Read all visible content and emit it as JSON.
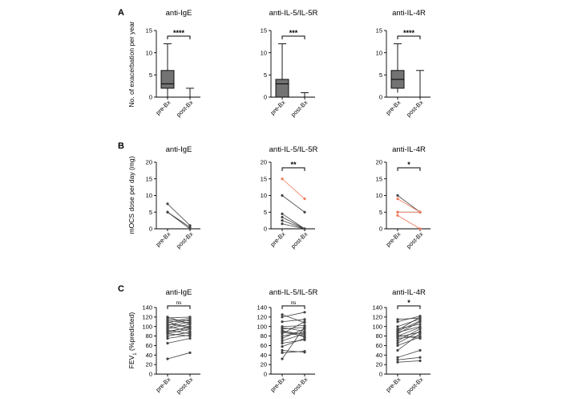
{
  "panels": [
    {
      "letter": "A",
      "ylabel": "No. of exacerbation per year",
      "charts": [
        {
          "type": "box",
          "title": "anti-IgE",
          "categories": [
            "pre-Bx",
            "post-Bx"
          ],
          "ylim": [
            0,
            15
          ],
          "yticks": [
            0,
            5,
            10,
            15
          ],
          "significance": "****",
          "boxes": [
            {
              "min": 0,
              "q1": 2,
              "median": 3,
              "q3": 6,
              "max": 12
            },
            {
              "min": 0,
              "q1": 0,
              "median": 0,
              "q3": 0,
              "max": 2
            }
          ]
        },
        {
          "type": "box",
          "title": "anti-IL-5/IL-5R",
          "categories": [
            "pre-Bx",
            "post-Bx"
          ],
          "ylim": [
            0,
            15
          ],
          "yticks": [
            0,
            5,
            10,
            15
          ],
          "significance": "***",
          "boxes": [
            {
              "min": 0,
              "q1": 0,
              "median": 3,
              "q3": 4,
              "max": 12
            },
            {
              "min": 0,
              "q1": 0,
              "median": 0,
              "q3": 0,
              "max": 1
            }
          ]
        },
        {
          "type": "box",
          "title": "anti-IL-4R",
          "categories": [
            "pre-Bx",
            "post-Bx"
          ],
          "ylim": [
            0,
            15
          ],
          "yticks": [
            0,
            5,
            10,
            15
          ],
          "significance": "****",
          "boxes": [
            {
              "min": 1,
              "q1": 2,
              "median": 4,
              "q3": 6,
              "max": 12
            },
            {
              "min": 0,
              "q1": 0,
              "median": 0,
              "q3": 0,
              "max": 6
            }
          ]
        }
      ]
    },
    {
      "letter": "B",
      "ylabel": "mOCS dose per day (mg)",
      "charts": [
        {
          "type": "paired",
          "title": "anti-IgE",
          "categories": [
            "pre-Bx",
            "post-Bx"
          ],
          "ylim": [
            0,
            20
          ],
          "yticks": [
            0,
            5,
            10,
            15,
            20
          ],
          "significance": "",
          "pairs": [
            [
              7.5,
              1
            ],
            [
              5,
              0
            ],
            [
              5,
              0.5
            ]
          ],
          "highlight_pairs": []
        },
        {
          "type": "paired",
          "title": "anti-IL-5/IL-5R",
          "categories": [
            "pre-Bx",
            "post-Bx"
          ],
          "ylim": [
            0,
            20
          ],
          "yticks": [
            0,
            5,
            10,
            15,
            20
          ],
          "significance": "**",
          "pairs": [
            [
              10,
              5
            ],
            [
              4.5,
              0
            ],
            [
              3.5,
              0
            ],
            [
              2.5,
              0
            ],
            [
              1.5,
              0
            ]
          ],
          "highlight_pairs": [
            [
              15,
              9
            ]
          ]
        },
        {
          "type": "paired",
          "title": "anti-IL-4R",
          "categories": [
            "pre-Bx",
            "post-Bx"
          ],
          "ylim": [
            0,
            20
          ],
          "yticks": [
            0,
            5,
            10,
            15,
            20
          ],
          "significance": "*",
          "pairs": [
            [
              10,
              5
            ],
            [
              5,
              5
            ]
          ],
          "highlight_pairs": [
            [
              9,
              5
            ],
            [
              5,
              5
            ],
            [
              4,
              0
            ]
          ]
        }
      ]
    },
    {
      "letter": "C",
      "ylabel": "FEV",
      "ylabel_sub": "1",
      "ylabel_rest": " (%predicted)",
      "charts": [
        {
          "type": "paired",
          "title": "anti-IgE",
          "categories": [
            "pre-Bx",
            "post-Bx"
          ],
          "ylim": [
            0,
            140
          ],
          "yticks": [
            0,
            20,
            40,
            60,
            80,
            100,
            120,
            140
          ],
          "significance": "ns",
          "pairs": [
            [
              32,
              45
            ],
            [
              65,
              75
            ],
            [
              75,
              82
            ],
            [
              80,
              88
            ],
            [
              85,
              95
            ],
            [
              88,
              100
            ],
            [
              92,
              85
            ],
            [
              95,
              105
            ],
            [
              98,
              110
            ],
            [
              100,
              90
            ],
            [
              102,
              115
            ],
            [
              105,
              100
            ],
            [
              108,
              118
            ],
            [
              110,
              95
            ],
            [
              112,
              108
            ],
            [
              115,
              112
            ],
            [
              118,
              120
            ],
            [
              120,
              105
            ],
            [
              90,
              98
            ],
            [
              85,
              80
            ]
          ],
          "highlight_pairs": []
        },
        {
          "type": "paired",
          "title": "anti-IL-5/IL-5R",
          "categories": [
            "pre-Bx",
            "post-Bx"
          ],
          "ylim": [
            0,
            140
          ],
          "yticks": [
            0,
            20,
            40,
            60,
            80,
            100,
            120,
            140
          ],
          "significance": "ns",
          "pairs": [
            [
              32,
              100
            ],
            [
              45,
              48
            ],
            [
              50,
              46
            ],
            [
              58,
              75
            ],
            [
              70,
              85
            ],
            [
              75,
              95
            ],
            [
              80,
              88
            ],
            [
              85,
              110
            ],
            [
              88,
              80
            ],
            [
              92,
              78
            ],
            [
              95,
              98
            ],
            [
              98,
              90
            ],
            [
              100,
              102
            ],
            [
              110,
              115
            ],
            [
              120,
              130
            ],
            [
              125,
              108
            ],
            [
              65,
              72
            ],
            [
              90,
              84
            ]
          ],
          "highlight_pairs": []
        },
        {
          "type": "paired",
          "title": "anti-IL-4R",
          "categories": [
            "pre-Bx",
            "post-Bx"
          ],
          "ylim": [
            0,
            140
          ],
          "yticks": [
            0,
            20,
            40,
            60,
            80,
            100,
            120,
            140
          ],
          "significance": "*",
          "pairs": [
            [
              25,
              28
            ],
            [
              30,
              35
            ],
            [
              35,
              50
            ],
            [
              50,
              85
            ],
            [
              60,
              78
            ],
            [
              65,
              90
            ],
            [
              70,
              95
            ],
            [
              75,
              80
            ],
            [
              80,
              98
            ],
            [
              85,
              110
            ],
            [
              88,
              100
            ],
            [
              90,
              112
            ],
            [
              92,
              120
            ],
            [
              95,
              105
            ],
            [
              100,
              116
            ],
            [
              110,
              122
            ],
            [
              115,
              118
            ],
            [
              82,
              75
            ],
            [
              78,
              88
            ]
          ],
          "highlight_pairs": []
        }
      ]
    }
  ],
  "colors": {
    "box_fill": "#737373",
    "line": "#444444",
    "highlight": "#f07a5a",
    "axis": "#000000"
  }
}
